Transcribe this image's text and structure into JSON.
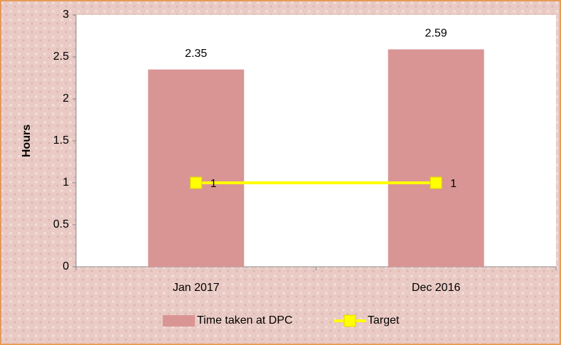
{
  "chart_data": {
    "type": "bar",
    "categories": [
      "Jan 2017",
      "Dec 2016"
    ],
    "series": [
      {
        "name": "Time taken at DPC",
        "color": "#d99594",
        "type": "bar",
        "values": [
          2.35,
          2.59
        ]
      },
      {
        "name": "Target",
        "color": "#ffff00",
        "type": "line",
        "values": [
          1,
          1
        ]
      }
    ],
    "ylabel": "Hours",
    "ylim": [
      0,
      3
    ],
    "yticks": [
      0,
      0.5,
      1,
      1.5,
      2,
      2.5,
      3
    ],
    "legend": "bottom"
  }
}
